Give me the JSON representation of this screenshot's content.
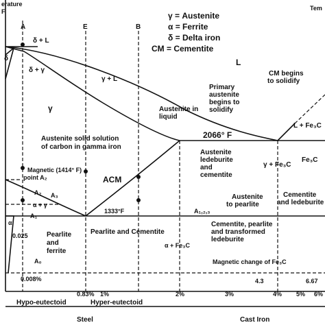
{
  "axis": {
    "top_left": "erature",
    "unit": "F",
    "top_right": "Tem"
  },
  "legend": [
    "γ = Austenite",
    "α = Ferrite",
    "δ = Delta iron",
    "CM = Cementite"
  ],
  "markers": [
    "A",
    "E",
    "B"
  ],
  "phases": {
    "liquid": "L",
    "delta_liquid": "δ + L",
    "delta": "δ",
    "delta_gamma": "δ + γ",
    "gamma_liquid": "γ + L",
    "gamma": "γ",
    "primary": [
      "Primary",
      "austenite",
      "begins to",
      "solidify"
    ],
    "austenite_liquid": [
      "Austenite in",
      "liquid"
    ],
    "cm_begins": [
      "CM begins",
      "to solidify"
    ],
    "l_fe3c": "L + Fe₃C",
    "solid_solution": [
      "Austenite solid solution",
      "of carbon in gamma iron"
    ],
    "eutectic_temp": "2066° F",
    "magnetic": [
      "Magnetic (1414° F)",
      "point A₂"
    ],
    "acm": "ACM",
    "ledeburite": [
      "Austenite",
      "ledeburite",
      "and",
      "cementite"
    ],
    "gamma_fe3c": "γ + Fe₃C",
    "fe3c": "Fe₃C",
    "a2": "A₂",
    "a3": "A₃",
    "alpha_gamma": "α + γ",
    "a1": "A₁",
    "alpha": "α",
    "c025": "0.025",
    "pearlite_ferrite": [
      "Pearlite",
      "and",
      "ferrite"
    ],
    "pearlite_cementite": "Pearlite and Cementite",
    "eutectoid_temp": "1333°F",
    "to_pearlite": [
      "Austenite",
      "to pearlite"
    ],
    "a123": "A₁,₂,₃",
    "cem_led": [
      "Cementite",
      "and ledeburite"
    ],
    "cem_pearlite": [
      "Cementite, pearlite",
      "and transformed",
      "ledeburite"
    ],
    "alpha_fe3c": "α + Fe₃C",
    "a0": "A₀",
    "magnetic_fe3c": "Magnetic change of Fe₃C",
    "c008": "0.008%",
    "c43": "4.3",
    "c667": "6.67"
  },
  "x_labels": [
    "0.83%",
    "1%",
    "2%",
    "3%",
    "4%",
    "5%",
    "6%"
  ],
  "ranges": [
    "Hypo-eutectoid",
    "Hyper-eutectoid"
  ],
  "groups": [
    "Steel",
    "Cast Iron"
  ]
}
